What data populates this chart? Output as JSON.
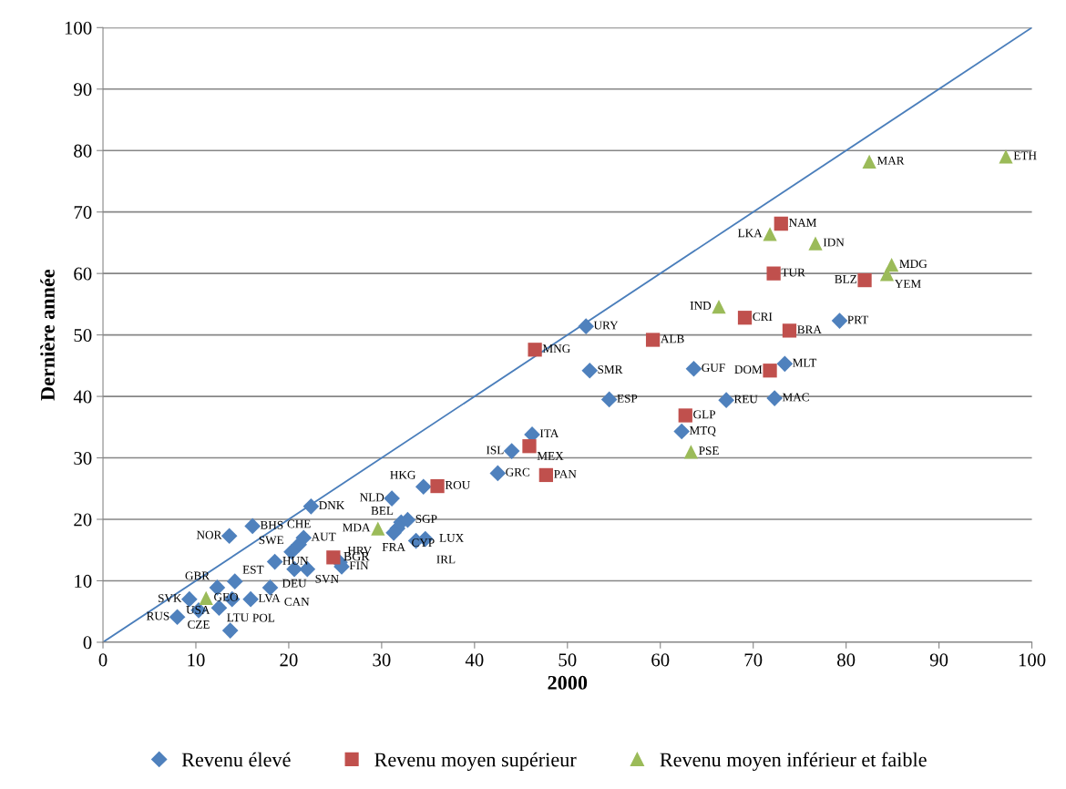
{
  "chart_data": {
    "type": "scatter",
    "xlabel": "2000",
    "ylabel": "Dernière année",
    "xlim": [
      0,
      100
    ],
    "ylim": [
      0,
      100
    ],
    "xticks": [
      0,
      10,
      20,
      30,
      40,
      50,
      60,
      70,
      80,
      90,
      100
    ],
    "yticks": [
      0,
      10,
      20,
      30,
      40,
      50,
      60,
      70,
      80,
      90,
      100
    ],
    "grid": "y",
    "legend": "bottom",
    "series": [
      {
        "name": "Revenu élevé",
        "color": "#4f81bd",
        "marker": "diamond",
        "x": [
          8.0,
          9.3,
          10.3,
          12.5,
          13.7,
          12.3,
          14.2,
          13.9,
          15.9,
          18.0,
          18.5,
          13.6,
          16.1,
          20.6,
          22.0,
          21.1,
          21.6,
          20.3,
          25.5,
          25.7,
          22.4,
          31.1,
          34.5,
          32.1,
          32.8,
          31.7,
          33.7,
          34.7,
          31.3,
          42.5,
          44.0,
          46.2,
          54.5,
          52.0,
          52.4,
          63.6,
          67.1,
          72.3,
          62.3,
          73.4,
          79.3
        ],
        "values": [
          4.1,
          7.0,
          5.2,
          5.6,
          1.9,
          8.9,
          9.9,
          7.0,
          7.0,
          8.9,
          13.1,
          17.3,
          18.9,
          11.9,
          11.9,
          15.9,
          17.0,
          14.7,
          13.0,
          12.3,
          22.1,
          23.4,
          25.3,
          19.5,
          19.9,
          18.5,
          16.5,
          16.8,
          17.8,
          27.5,
          31.1,
          33.8,
          39.5,
          51.4,
          44.2,
          44.5,
          39.4,
          39.7,
          34.3,
          45.3,
          52.3
        ],
        "value_labels": [
          "RUS",
          "SVK",
          "CZE",
          "LTU",
          "USA",
          "GBR",
          "EST",
          "POL",
          "LVA",
          "CAN",
          "HUN",
          "NOR",
          "BHS",
          "DEU",
          "SVN",
          "CHE",
          "AUT",
          "SWE",
          "HRV",
          "FIN",
          "DNK",
          "NLD",
          "HKG",
          "BEL",
          "SGP",
          "CYP",
          "IRL",
          "LUX",
          "FRA",
          "GRC",
          "ISL",
          "ITA",
          "ESP",
          "URY",
          "SMR",
          "GUF",
          "REU",
          "MAC",
          "MTQ",
          "MLT",
          "PRT"
        ]
      },
      {
        "name": "Revenu moyen supérieur",
        "color": "#c0504d",
        "marker": "square",
        "x": [
          24.8,
          36.0,
          45.9,
          47.7,
          46.5,
          59.2,
          69.1,
          73.9,
          71.8,
          62.7,
          73.0,
          72.2,
          82.0
        ],
        "values": [
          13.8,
          25.4,
          31.9,
          27.2,
          47.6,
          49.2,
          52.8,
          50.7,
          44.2,
          36.9,
          68.1,
          60.0,
          58.9
        ],
        "value_labels": [
          "BGR",
          "ROU",
          "MEX",
          "PAN",
          "MNG",
          "ALB",
          "CRI",
          "BRA",
          "DOM",
          "GLP",
          "NAM",
          "TUR",
          "BLZ"
        ]
      },
      {
        "name": "Revenu moyen inférieur et faible",
        "color": "#9bbb59",
        "marker": "triangle",
        "x": [
          11.1,
          29.6,
          63.3,
          66.3,
          71.8,
          76.7,
          84.9,
          84.4,
          82.5,
          97.2
        ],
        "values": [
          7.2,
          18.5,
          31.0,
          54.6,
          66.4,
          64.9,
          61.4,
          59.9,
          78.2,
          79.0
        ],
        "value_labels": [
          "GEO",
          "MDA",
          "PSE",
          "IND",
          "LKA",
          "IDN",
          "MDG",
          "YEM",
          "MAR",
          "ETH"
        ]
      },
      {
        "type": "line",
        "color": "#4a7ebb",
        "marker": "none",
        "line_style": "solid",
        "x": [
          0,
          100
        ],
        "values": [
          0,
          100
        ]
      }
    ]
  }
}
